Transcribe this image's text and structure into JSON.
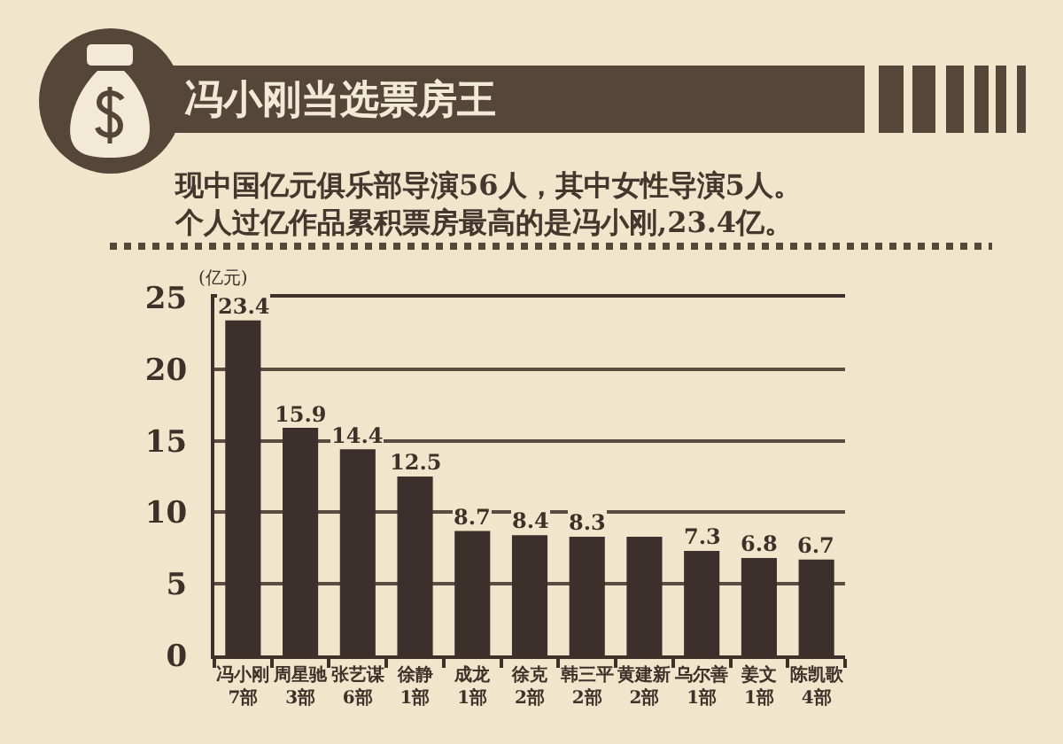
{
  "chart_data": {
    "type": "bar",
    "title": "冯小刚当选票房王",
    "subtitle": "现中国亿元俱乐部导演56人，其中女性导演5人。个人过亿作品累积票房最高的是冯小刚,23.4亿。",
    "ylabel": "(亿元)",
    "categories": [
      "冯小刚\n7部",
      "周星驰\n3部",
      "张艺谋\n6部",
      "徐静\n1部",
      "成龙\n1部",
      "徐克\n2部",
      "韩三平\n2部",
      "黄建新\n2部",
      "乌尔善\n1部",
      "姜文\n1部",
      "陈凯歌\n4部"
    ],
    "values": [
      23.4,
      15.9,
      14.4,
      12.5,
      8.7,
      8.4,
      8.3,
      8.3,
      7.3,
      6.8,
      6.7
    ],
    "value_labels": [
      "23.4",
      "15.9",
      "14.4",
      "12.5",
      "8.7",
      "8.4",
      "8.3",
      null,
      "7.3",
      "6.8",
      "6.7"
    ],
    "color": "#3b302c",
    "ylim": [
      0,
      25
    ],
    "yticks": [
      0,
      5,
      10,
      15,
      20,
      25
    ],
    "grid": "y"
  }
}
